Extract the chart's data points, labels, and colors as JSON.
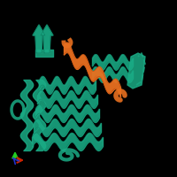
{
  "background_color": "#000000",
  "fig_size": [
    2.0,
    2.0
  ],
  "dpi": 100,
  "teal_color": "#1aab85",
  "orange_color": "#e87020",
  "dark_teal": "#0d7a5f",
  "orange_dark": "#c05010"
}
